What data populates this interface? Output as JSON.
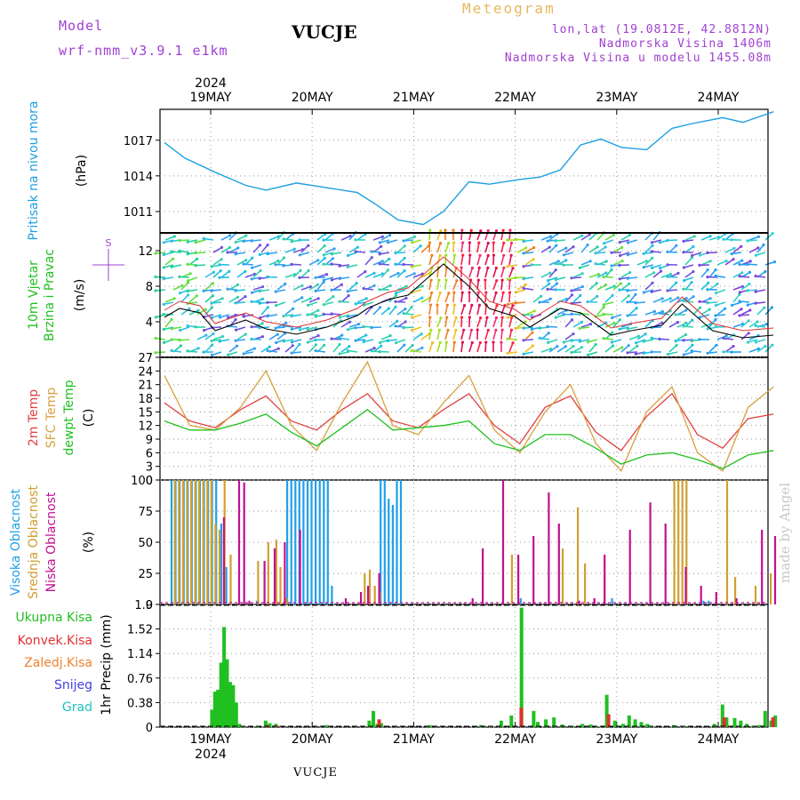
{
  "header": {
    "model_label": "Model",
    "model_name": "wrf-nmm_v3.9.1  e1km",
    "station": "VUCJE",
    "title": "Meteogram",
    "coords": "lon,lat (19.0812E, 42.8812N)",
    "elevation": "Nadmorska Visina 1406m",
    "model_elevation": "Nadmorska Visina u modelu 1455.08m"
  },
  "footer": {
    "station": "VUCJE",
    "credit": "made by Angel"
  },
  "time_axis": {
    "year": "2024",
    "day_labels": [
      "19MAY",
      "20MAY",
      "21MAY",
      "22MAY",
      "23MAY",
      "24MAY"
    ]
  },
  "colors": {
    "pressure": "#1ea0e0",
    "temp2m": "#e04040",
    "sfc": "#d8a040",
    "dew": "#20c020",
    "high_cloud": "#20a0e8",
    "mid_cloud": "#d0a030",
    "low_cloud": "#c01090",
    "total_precip": "#20c020",
    "convective": "#e03030",
    "frozen": "#f08030",
    "snow": "#4040e0",
    "hail": "#20c0c0",
    "wind_line": "#000000",
    "wind_gust": "#e03030",
    "axis_label_wind": "#a040d0"
  },
  "chart_data": [
    {
      "type": "line",
      "panel": "pressure",
      "ylabel": "Pritisak na nivou mora",
      "unit": "(hPa)",
      "yticks": [
        1011,
        1014,
        1017
      ],
      "ylim": [
        1009.2,
        1019.6
      ],
      "x_days": [
        0,
        0.2,
        0.5,
        0.8,
        1.0,
        1.3,
        1.6,
        1.9,
        2.1,
        2.3,
        2.55,
        2.75,
        3.0,
        3.2,
        3.5,
        3.7,
        3.9,
        4.1,
        4.3,
        4.5,
        4.75,
        5.0,
        5.2,
        5.5,
        5.7,
        6.0
      ],
      "values": [
        1016.8,
        1015.5,
        1014.3,
        1013.2,
        1012.8,
        1013.4,
        1013.0,
        1012.6,
        1011.5,
        1010.3,
        1009.9,
        1011.0,
        1013.5,
        1013.3,
        1013.7,
        1013.9,
        1014.5,
        1016.6,
        1017.1,
        1016.4,
        1016.2,
        1018.0,
        1018.4,
        1018.9,
        1018.5,
        1019.4
      ]
    },
    {
      "type": "line",
      "panel": "wind",
      "ylabel": [
        "10m Vjetar",
        "Brzina i Pravac"
      ],
      "unit": "(m/s)",
      "compass": "S",
      "yticks": [
        4,
        8,
        12
      ],
      "ylim": [
        0,
        14
      ],
      "x_days": [
        0,
        0.15,
        0.35,
        0.5,
        0.8,
        1.0,
        1.3,
        1.6,
        1.9,
        2.0,
        2.2,
        2.4,
        2.55,
        2.75,
        3.0,
        3.2,
        3.45,
        3.6,
        3.9,
        4.1,
        4.4,
        4.6,
        4.9,
        5.1,
        5.4,
        5.7,
        6.0
      ],
      "values": [
        4.5,
        5.5,
        5.0,
        3.0,
        4.2,
        3.2,
        2.6,
        3.4,
        4.7,
        5.5,
        6.5,
        7.0,
        8.5,
        10.5,
        8.0,
        5.5,
        4.6,
        3.4,
        5.5,
        5.0,
        2.5,
        3.0,
        3.6,
        6.0,
        3.0,
        2.2,
        2.5
      ]
    },
    {
      "type": "line",
      "panel": "temperature",
      "ylabel": [
        "2m Temp",
        "SFC Temp",
        "dewpt Temp"
      ],
      "unit": "(C)",
      "yticks": [
        0,
        3,
        6,
        9,
        12,
        15,
        18,
        21,
        24,
        27
      ],
      "ylim": [
        0,
        27
      ],
      "x_days": [
        0,
        0.25,
        0.5,
        0.75,
        1.0,
        1.25,
        1.5,
        1.75,
        2.0,
        2.25,
        2.5,
        2.75,
        3.0,
        3.25,
        3.5,
        3.75,
        4.0,
        4.25,
        4.5,
        4.75,
        5.0,
        5.25,
        5.5,
        5.75,
        6.0
      ],
      "series": [
        {
          "name": "2m Temp",
          "values": [
            17.0,
            13.0,
            11.5,
            15.5,
            18.5,
            13.0,
            11.0,
            15.5,
            19.0,
            13.0,
            11.5,
            15.5,
            19.0,
            12.0,
            8.0,
            16.0,
            18.5,
            10.5,
            6.5,
            14.0,
            19.0,
            10.0,
            7.0,
            13.5,
            14.5
          ]
        },
        {
          "name": "SFC Temp",
          "values": [
            23.0,
            12.0,
            11.0,
            16.0,
            24.0,
            12.0,
            6.5,
            17.0,
            26.0,
            12.0,
            10.0,
            17.0,
            23.0,
            11.0,
            6.0,
            15.0,
            21.0,
            8.0,
            2.0,
            15.0,
            20.5,
            6.0,
            2.0,
            16.0,
            20.5
          ]
        },
        {
          "name": "dewpt Temp",
          "values": [
            13.0,
            11.0,
            11.0,
            12.5,
            14.5,
            10.5,
            7.5,
            11.5,
            15.5,
            11.0,
            11.5,
            12.0,
            13.0,
            8.0,
            6.5,
            10.0,
            10.0,
            7.0,
            3.5,
            5.5,
            6.0,
            4.5,
            2.5,
            5.5,
            6.5
          ]
        }
      ]
    },
    {
      "type": "bar",
      "panel": "cloud",
      "ylabel": [
        "Visoka Oblacnost",
        "Srednja Oblacnost",
        "Niska Oblacnost"
      ],
      "unit": "(%)",
      "yticks": [
        0,
        25,
        50,
        75,
        100
      ],
      "ylim": [
        0,
        100
      ],
      "series": [
        {
          "name": "Visoka Oblacnost",
          "x_days": [
            0.06,
            0.1,
            0.14,
            0.18,
            0.22,
            0.26,
            0.3,
            0.34,
            0.38,
            0.42,
            0.46,
            0.5,
            0.55,
            0.6,
            0.9,
            1.2,
            1.24,
            1.28,
            1.32,
            1.36,
            1.4,
            1.44,
            1.48,
            1.52,
            1.56,
            1.6,
            1.64,
            2.12,
            2.16,
            2.2,
            2.24,
            2.28,
            2.32,
            3.5,
            4.4,
            5.3,
            5.35
          ],
          "values": [
            100,
            100,
            100,
            100,
            100,
            100,
            100,
            100,
            100,
            100,
            100,
            100,
            65,
            30,
            3,
            100,
            100,
            100,
            100,
            100,
            100,
            100,
            100,
            100,
            100,
            100,
            15,
            100,
            100,
            85,
            80,
            100,
            100,
            5,
            5,
            3,
            3
          ]
        },
        {
          "name": "Srednja Oblacnost",
          "x_days": [
            0.08,
            0.12,
            0.16,
            0.2,
            0.24,
            0.28,
            0.32,
            0.36,
            0.4,
            0.44,
            0.48,
            0.52,
            0.57,
            0.63,
            0.9,
            1.0,
            1.08,
            1.12,
            1.18,
            1.95,
            2.0,
            2.05,
            2.1,
            3.4,
            3.9,
            4.05,
            4.12,
            5.0,
            5.04,
            5.08,
            5.12,
            5.52,
            5.6,
            5.8,
            5.95
          ],
          "values": [
            100,
            100,
            100,
            100,
            100,
            100,
            100,
            100,
            100,
            100,
            65,
            60,
            100,
            40,
            35,
            50,
            52,
            30,
            5,
            25,
            28,
            15,
            10,
            40,
            45,
            78,
            33,
            100,
            100,
            100,
            100,
            100,
            22,
            15,
            25
          ]
        },
        {
          "name": "Niska Oblacnost",
          "x_days": [
            0.55,
            0.7,
            0.75,
            0.8,
            0.95,
            1.05,
            1.15,
            1.3,
            1.75,
            1.9,
            1.97,
            2.08,
            3.0,
            3.1,
            3.3,
            3.45,
            3.6,
            3.75,
            3.85,
            4.05,
            4.2,
            4.3,
            4.55,
            4.75,
            4.9,
            5.1,
            5.25,
            5.4,
            5.6,
            5.85,
            5.98
          ],
          "values": [
            70,
            100,
            98,
            3,
            35,
            45,
            50,
            60,
            5,
            10,
            15,
            25,
            5,
            45,
            100,
            40,
            55,
            90,
            65,
            3,
            5,
            40,
            60,
            82,
            65,
            30,
            15,
            10,
            5,
            60,
            55
          ]
        }
      ]
    },
    {
      "type": "bar",
      "panel": "precipitation",
      "ylabel": [
        "Ukupna Kisa",
        "Konvek.Kisa",
        "Zaledj.Kisa",
        "Snijeg",
        "Grad"
      ],
      "unit": "1hr Precip (mm)",
      "yticks": [
        0,
        0.38,
        0.76,
        1.14,
        1.52,
        1.9
      ],
      "ylim": [
        0,
        1.9
      ],
      "series": [
        {
          "name": "Ukupna Kisa",
          "x_days": [
            0.45,
            0.48,
            0.51,
            0.54,
            0.57,
            0.6,
            0.63,
            0.66,
            0.69,
            0.72,
            0.75,
            0.9,
            0.98,
            1.02,
            1.08,
            1.58,
            2.0,
            2.04,
            2.08,
            2.12,
            2.6,
            3.1,
            3.2,
            3.3,
            3.4,
            3.5,
            3.62,
            3.66,
            3.74,
            3.82,
            3.9,
            4.0,
            4.1,
            4.18,
            4.26,
            4.34,
            4.42,
            4.5,
            4.56,
            4.62,
            4.68,
            4.74,
            4.78,
            5.0,
            5.1,
            5.4,
            5.48,
            5.52,
            5.6,
            5.66,
            5.72,
            5.78,
            5.84,
            5.9,
            5.96,
            6.0
          ],
          "values": [
            0.27,
            0.55,
            0.58,
            1.0,
            1.55,
            1.05,
            0.7,
            0.65,
            0.38,
            0.05,
            0.02,
            0.02,
            0.1,
            0.06,
            0.05,
            0.03,
            0.1,
            0.25,
            0.05,
            0.06,
            0.03,
            0.03,
            0.02,
            0.1,
            0.18,
            1.85,
            0.25,
            0.08,
            0.12,
            0.15,
            0.04,
            0.02,
            0.05,
            0.04,
            0.01,
            0.5,
            0.1,
            0.05,
            0.18,
            0.12,
            0.08,
            0.05,
            0.02,
            0.03,
            0.02,
            0.05,
            0.35,
            0.15,
            0.14,
            0.1,
            0.05,
            0.02,
            0.03,
            0.25,
            0.1,
            0.18
          ]
        },
        {
          "name": "Konvek.Kisa",
          "x_days": [
            0.98,
            1.08,
            2.08,
            3.48,
            4.34,
            5.48,
            5.96
          ],
          "values": [
            0.03,
            0.02,
            0.12,
            0.3,
            0.2,
            0.15,
            0.15
          ]
        },
        {
          "name": "Zaledj.Kisa",
          "x_days": [],
          "values": []
        },
        {
          "name": "Snijeg",
          "x_days": [],
          "values": []
        },
        {
          "name": "Grad",
          "x_days": [],
          "values": []
        }
      ]
    }
  ]
}
